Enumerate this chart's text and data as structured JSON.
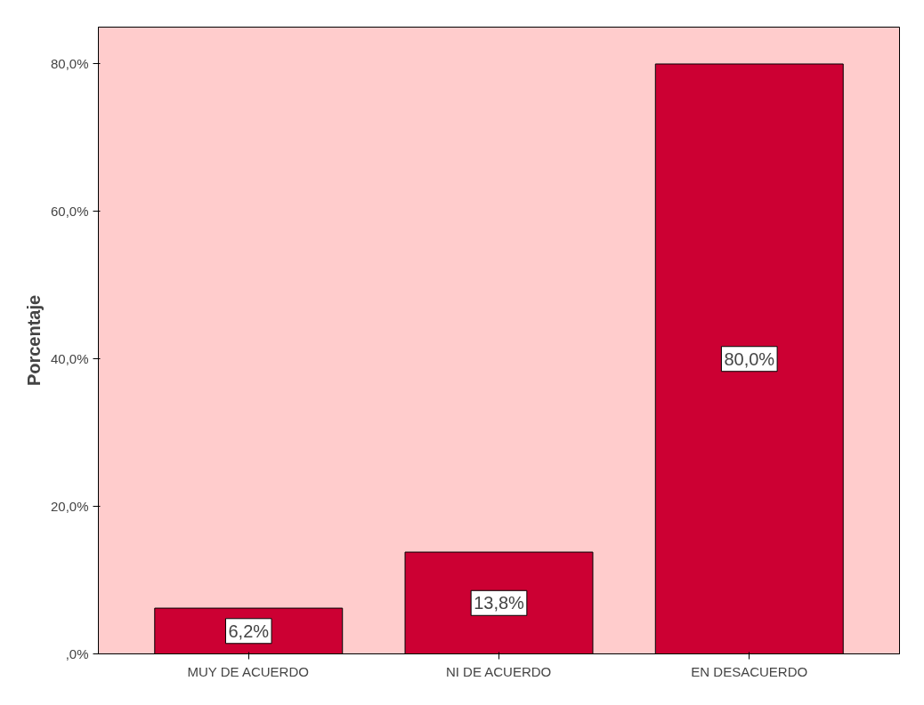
{
  "chart_data": {
    "type": "bar",
    "ylabel": "Porcentaje",
    "categories": [
      "MUY DE ACUERDO",
      "NI DE ACUERDO",
      "EN DESACUERDO"
    ],
    "values": [
      6.2,
      13.8,
      80.0
    ],
    "value_labels": [
      "6,2%",
      "13,8%",
      "80,0%"
    ],
    "color": "#cc0033",
    "ylim": [
      0,
      85
    ],
    "yticks": [
      {
        "value": 0,
        "label": ",0%"
      },
      {
        "value": 20,
        "label": "20,0%"
      },
      {
        "value": 40,
        "label": "40,0%"
      },
      {
        "value": 60,
        "label": "60,0%"
      },
      {
        "value": 80,
        "label": "80,0%"
      }
    ],
    "grid": false
  }
}
